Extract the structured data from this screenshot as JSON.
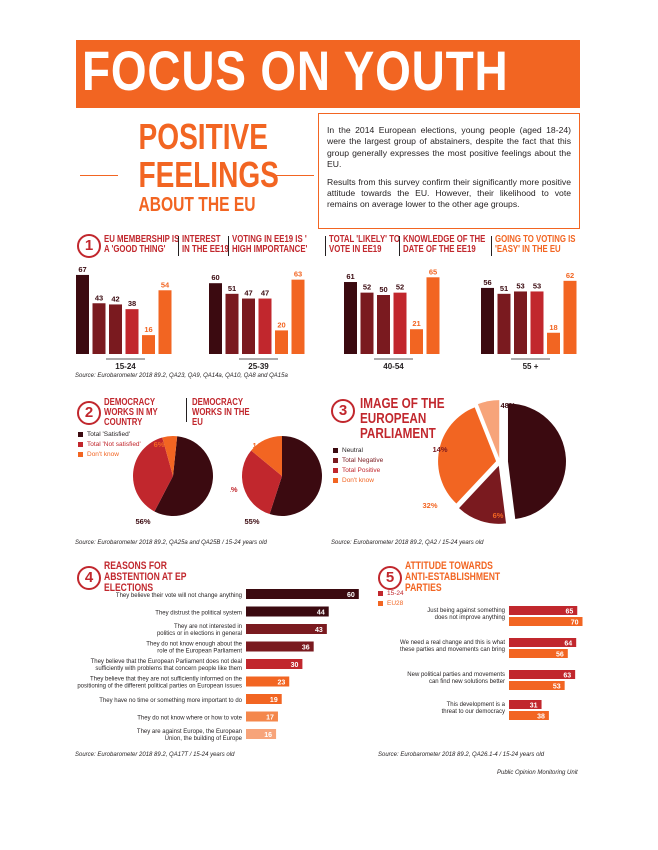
{
  "header": {
    "banner": "FOCUS ON YOUTH",
    "title_lines": [
      "POSITIVE",
      "FEELINGS",
      "ABOUT THE EU"
    ],
    "intro_p1": "In the 2014 European elections, young people (aged 18-24) were the largest group of abstainers, despite the fact that this group generally expresses the most positive feelings about the EU.",
    "intro_p2": "Results from this survey confirm their significantly more positive attitude towards the EU. However, their likelihood to vote remains on average lower to the other age groups."
  },
  "colors": {
    "orange": "#f26522",
    "dark": "#3b0a10",
    "maroon": "#7a1a1f",
    "red": "#c1272d",
    "light_orange": "#f7a47a"
  },
  "section1": {
    "number": "1",
    "headers": [
      "EU MEMBERSHIP IS A 'GOOD THING'",
      "INTEREST IN THE EE19",
      "VOTING IN EE19 IS ' HIGH IMPORTANCE'",
      "TOTAL 'LIKELY' TO VOTE IN EE19",
      "KNOWLEDGE OF THE DATE OF THE EE19",
      "GOING TO VOTING IS 'EASY' IN THE EU"
    ],
    "source": "Source: Eurobarometer 2018 89.2, QA23, QA9, QA14a, QA10, QA8 and QA15a"
  },
  "section2": {
    "number": "2",
    "title_a": "DEMOCRACY WORKS IN MY COUNTRY",
    "title_b": "DEMOCRACY WORKS IN THE EU",
    "legend": [
      "Total 'Satisfied'",
      "Total 'Not satisfied'",
      "Don't know"
    ],
    "source": "Source: Eurobarometer 2018 89.2, QA25a and QA25B / 15-24 years old"
  },
  "section3": {
    "number": "3",
    "title": "IMAGE OF THE EUROPEAN PARLIAMENT",
    "legend": [
      "Neutral",
      "Total Negative",
      "Total Positive",
      "Don't know"
    ],
    "source": "Source: Eurobarometer 2018 89.2, QA2 / 15-24 years old"
  },
  "section4": {
    "number": "4",
    "title": "REASONS FOR ABSTENTION AT EP ELECTIONS",
    "source": "Source: Eurobarometer 2018 89.2, QA17T / 15-24 years old"
  },
  "section5": {
    "number": "5",
    "title": "ATTITUDE TOWARDS ANTI-ESTABLISHMENT PARTIES",
    "legend": [
      "15-24",
      "EU28"
    ],
    "source": "Source: Eurobarometer 2018 89.2, QA26.1-4 / 15-24 years old"
  },
  "footer": "Public Opinion Monitoring Unit",
  "chart_data": [
    {
      "type": "bar",
      "categories": [
        "15-24",
        "25-39",
        "40-54",
        "55 +"
      ],
      "series": [
        {
          "name": "EU MEMBERSHIP IS A 'GOOD THING'",
          "values": [
            67,
            60,
            61,
            56
          ]
        },
        {
          "name": "INTEREST IN THE EE19",
          "values": [
            43,
            51,
            52,
            51
          ]
        },
        {
          "name": "VOTING IN EE19 IS ' HIGH IMPORTANCE'",
          "values": [
            42,
            47,
            50,
            53
          ]
        },
        {
          "name": "TOTAL 'LIKELY' TO VOTE IN EE19",
          "values": [
            38,
            47,
            52,
            53
          ]
        },
        {
          "name": "KNOWLEDGE OF THE DATE OF THE EE19",
          "values": [
            16,
            20,
            21,
            18
          ]
        },
        {
          "name": "GOING TO VOTING IS 'EASY' IN THE EU",
          "values": [
            54,
            63,
            65,
            62
          ]
        }
      ],
      "ylim": [
        0,
        70
      ]
    },
    {
      "type": "pie",
      "title": "DEMOCRACY WORKS IN MY COUNTRY",
      "categories": [
        "Total 'Satisfied'",
        "Total 'Not satisfied'",
        "Don't know"
      ],
      "values": [
        56,
        38,
        6
      ],
      "labels": [
        "56%",
        "38%",
        "6%"
      ]
    },
    {
      "type": "pie",
      "title": "DEMOCRACY WORKS IN THE EU",
      "categories": [
        "Total 'Satisfied'",
        "Total 'Not satisfied'",
        "Don't know"
      ],
      "values": [
        55,
        31,
        14
      ],
      "labels": [
        "55%",
        "31%",
        "14%"
      ]
    },
    {
      "type": "pie",
      "title": "IMAGE OF THE EUROPEAN PARLIAMENT",
      "categories": [
        "Neutral",
        "Total Negative",
        "Total Positive",
        "Don't know"
      ],
      "values": [
        48,
        14,
        32,
        6
      ],
      "labels": [
        "48%",
        "14%",
        "32%",
        "6%"
      ]
    },
    {
      "type": "bar",
      "orientation": "horizontal",
      "title": "REASONS FOR ABSTENTION AT EP ELECTIONS",
      "categories": [
        "They believe their vote will not change anything",
        "They distrust the political system",
        "They are not interested in politics or in elections in general",
        "They do not know enough about the role of the European Parliament",
        "They believe that the European Parliament does not deal sufficiently with problems that concern people like them",
        "They believe that they are not sufficiently informed on the positioning of the different political parties on European issues",
        "They have no time or something more important to do",
        "They do not know where or how to vote",
        "They are against Europe, the European Union, the building of Europe"
      ],
      "values": [
        60,
        44,
        43,
        36,
        30,
        23,
        19,
        17,
        16
      ]
    },
    {
      "type": "bar",
      "orientation": "horizontal",
      "title": "ATTITUDE TOWARDS ANTI-ESTABLISHMENT PARTIES",
      "categories": [
        "Just being against something does not improve anything",
        "We need a real change and this is what these parties and movements can bring",
        "New political parties and movements can find new solutions better",
        "This development is a threat to our democracy"
      ],
      "series": [
        {
          "name": "15-24",
          "values": [
            65,
            64,
            63,
            31
          ]
        },
        {
          "name": "EU28",
          "values": [
            70,
            56,
            53,
            38
          ]
        }
      ]
    }
  ]
}
